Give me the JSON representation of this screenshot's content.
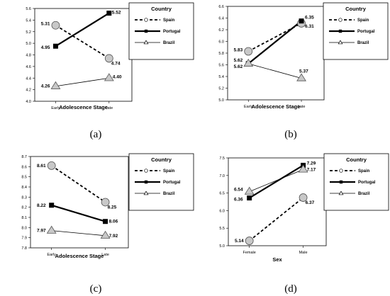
{
  "chart_data": [
    {
      "type": "line",
      "panel_label": "(a)",
      "xlabel": "Adolescence Stage",
      "ylabel": "",
      "categories": [
        "Early",
        "Late"
      ],
      "ylim": [
        4.0,
        5.6
      ],
      "yticks": [
        "4.0",
        "4.2",
        "4.4",
        "4.6",
        "4.8",
        "5.0",
        "5.2",
        "5.4",
        "5.6"
      ],
      "legend": {
        "title": "Country",
        "position": "top-right"
      },
      "series": [
        {
          "name": "Spain",
          "values": [
            5.31,
            4.74
          ],
          "labels": [
            "5.31",
            "4.74"
          ]
        },
        {
          "name": "Portugal",
          "values": [
            4.95,
            5.52
          ],
          "labels": [
            "4.95",
            "5.52"
          ]
        },
        {
          "name": "Brazil",
          "values": [
            4.26,
            4.4
          ],
          "labels": [
            "4.26",
            "4.40"
          ]
        }
      ]
    },
    {
      "type": "line",
      "panel_label": "(b)",
      "xlabel": "Adolescence Stage",
      "ylabel": "",
      "categories": [
        "Early",
        "Late"
      ],
      "ylim": [
        5.0,
        6.6
      ],
      "yticks": [
        "5.0",
        "5.2",
        "5.4",
        "5.6",
        "5.8",
        "6.0",
        "6.2",
        "6.4",
        "6.6"
      ],
      "legend": {
        "title": "Country",
        "position": "top-right"
      },
      "series": [
        {
          "name": "Spain",
          "values": [
            5.83,
            6.31
          ],
          "labels": [
            "5.83",
            "6.31"
          ]
        },
        {
          "name": "Portugal",
          "values": [
            5.62,
            6.35
          ],
          "labels": [
            "5.62",
            "6.35"
          ]
        },
        {
          "name": "Brazil",
          "values": [
            5.62,
            5.37
          ],
          "labels": [
            "5.62",
            "5.37"
          ]
        }
      ]
    },
    {
      "type": "line",
      "panel_label": "(c)",
      "xlabel": "Adolescence Stage",
      "ylabel": "",
      "categories": [
        "Early",
        "Late"
      ],
      "ylim": [
        7.8,
        8.7
      ],
      "yticks": [
        "7.8",
        "7.9",
        "8.0",
        "8.1",
        "8.2",
        "8.3",
        "8.4",
        "8.5",
        "8.6",
        "8.7"
      ],
      "legend": {
        "title": "Country",
        "position": "top-right"
      },
      "series": [
        {
          "name": "Spain",
          "values": [
            8.61,
            8.25
          ],
          "labels": [
            "8.61",
            "8.25"
          ]
        },
        {
          "name": "Portugal",
          "values": [
            8.22,
            8.06
          ],
          "labels": [
            "8.22",
            "8.06"
          ]
        },
        {
          "name": "Brazil",
          "values": [
            7.97,
            7.92
          ],
          "labels": [
            "7.97",
            "7.92"
          ]
        }
      ]
    },
    {
      "type": "line",
      "panel_label": "(d)",
      "xlabel": "Sex",
      "ylabel": "",
      "categories": [
        "Female",
        "Male"
      ],
      "ylim": [
        5.0,
        7.5
      ],
      "yticks": [
        "5.0",
        "5.5",
        "6.0",
        "6.5",
        "7.0",
        "7.5"
      ],
      "legend": {
        "title": "Country",
        "position": "top-right"
      },
      "series": [
        {
          "name": "Spain",
          "values": [
            5.14,
            6.37
          ],
          "labels": [
            "5.14",
            "6.37"
          ]
        },
        {
          "name": "Portugal",
          "values": [
            6.36,
            7.29
          ],
          "labels": [
            "6.36",
            "7.29"
          ]
        },
        {
          "name": "Brazil",
          "values": [
            6.54,
            7.17
          ],
          "labels": [
            "6.54",
            "7.17"
          ]
        }
      ]
    }
  ]
}
